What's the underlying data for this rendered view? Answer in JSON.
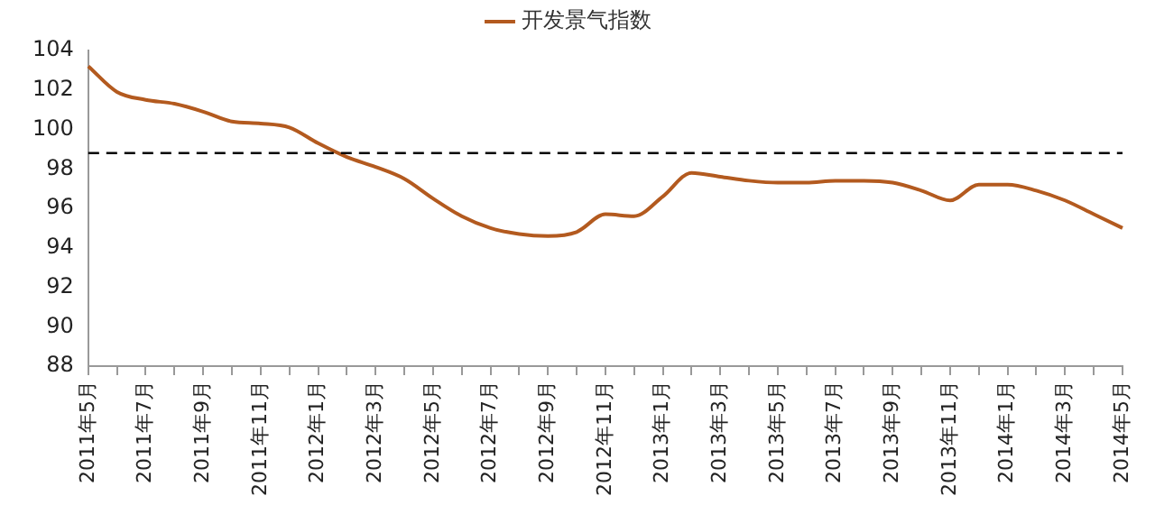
{
  "chart_data": {
    "type": "line",
    "categories": [
      "2011年5月",
      null,
      "2011年7月",
      null,
      "2011年9月",
      null,
      "2011年11月",
      null,
      "2012年1月",
      null,
      "2012年3月",
      null,
      "2012年5月",
      null,
      "2012年7月",
      null,
      "2012年9月",
      null,
      "2012年11月",
      null,
      "2013年1月",
      null,
      "2013年3月",
      null,
      "2013年5月",
      null,
      "2013年7月",
      null,
      "2013年9月",
      null,
      "2013年11月",
      null,
      "2014年1月",
      null,
      "2014年3月",
      null,
      "2014年5月"
    ],
    "series": [
      {
        "name": "开发景气指数",
        "color": "#b35a1f",
        "values": [
          103.2,
          101.9,
          101.5,
          101.3,
          100.9,
          100.4,
          100.3,
          100.1,
          99.3,
          98.6,
          98.1,
          97.5,
          96.5,
          95.6,
          95.0,
          94.7,
          94.6,
          94.8,
          95.7,
          95.6,
          96.6,
          97.8,
          97.6,
          97.4,
          97.3,
          97.3,
          97.4,
          97.4,
          97.3,
          96.9,
          96.4,
          97.2,
          97.2,
          96.9,
          96.4,
          95.7,
          95.0
        ]
      }
    ],
    "ylim": [
      88,
      104
    ],
    "yticks": [
      88,
      90,
      92,
      94,
      96,
      98,
      100,
      102,
      104
    ],
    "ref_lines": [
      {
        "axis": "y",
        "value": 98.8,
        "color": "#000000",
        "line_style": "dashed"
      }
    ],
    "grid": false,
    "legend": "top",
    "marker": "none",
    "line_style": "solid"
  }
}
